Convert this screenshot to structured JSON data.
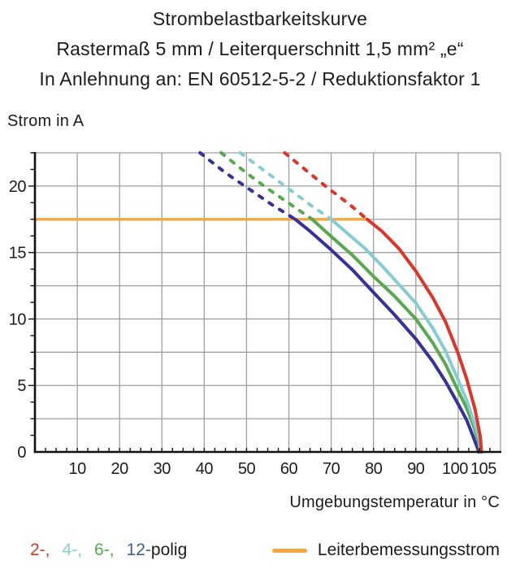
{
  "title": {
    "line1": "Strombelastbarkeitskurve",
    "line2": "Rastermaß 5 mm / Leiterquerschnitt 1,5 mm² „e“",
    "line3": "In Anlehnung an: EN 60512-5-2 / Reduktionsfaktor 1"
  },
  "y_axis_title": "Strom in A",
  "x_axis_title": "Umgebungstemperatur in °C",
  "legend": {
    "pole_items": [
      {
        "label": "2-,",
        "color": "#df3428"
      },
      {
        "label": "4-,",
        "color": "#85ccd3"
      },
      {
        "label": "6-,",
        "color": "#56a94c"
      },
      {
        "label": "12-",
        "color": "#3a61a5"
      }
    ],
    "pole_suffix": "polig",
    "rated_current_label": "Leiterbemessungsstrom",
    "rated_current_color": "#f4a640"
  },
  "chart_data": {
    "type": "line",
    "title": "Strombelastbarkeitskurve",
    "xlabel": "Umgebungstemperatur in °C",
    "ylabel": "Strom in A",
    "xlim": [
      0,
      110
    ],
    "ylim": [
      0,
      22.5
    ],
    "x_grid_step": 10,
    "y_grid_step": 2.5,
    "x_minor_tick_step": 2.5,
    "y_minor_tick_step": 1.25,
    "x_tick_labels": [
      10,
      20,
      30,
      40,
      50,
      60,
      70,
      80,
      90,
      100,
      105
    ],
    "y_tick_labels": [
      0,
      5,
      10,
      15,
      20
    ],
    "grid_on": true,
    "grid_color": "#9f9f9f",
    "axis_color": "#111111",
    "legend_position": "bottom",
    "rated_current_line": {
      "label": "Leiterbemessungsstrom",
      "y": 17.5,
      "x_start": 0,
      "x_end": 78.5,
      "color": "#f4a640"
    },
    "series": [
      {
        "name": "12-polig",
        "color": "#34309c",
        "dashed_points": [
          [
            39,
            22.5
          ],
          [
            45,
            21.0
          ],
          [
            50.5,
            19.8
          ],
          [
            56,
            18.6
          ],
          [
            61.5,
            17.5
          ]
        ],
        "solid_points": [
          [
            61.5,
            17.5
          ],
          [
            65,
            16.6
          ],
          [
            70,
            15.2
          ],
          [
            75,
            13.7
          ],
          [
            80,
            12.0
          ],
          [
            85,
            10.3
          ],
          [
            90,
            8.5
          ],
          [
            94,
            6.8
          ],
          [
            97,
            5.3
          ],
          [
            100,
            3.6
          ],
          [
            102,
            2.4
          ],
          [
            103.5,
            1.2
          ],
          [
            104.9,
            0
          ]
        ]
      },
      {
        "name": "6-polig",
        "color": "#56a94c",
        "dashed_points": [
          [
            44,
            22.5
          ],
          [
            49.5,
            21.1
          ],
          [
            55,
            19.8
          ],
          [
            60.5,
            18.6
          ],
          [
            65.5,
            17.5
          ]
        ],
        "solid_points": [
          [
            65.5,
            17.5
          ],
          [
            70,
            16.2
          ],
          [
            75,
            14.8
          ],
          [
            80,
            13.2
          ],
          [
            85,
            11.7
          ],
          [
            90,
            10.0
          ],
          [
            94,
            8.2
          ],
          [
            97,
            6.6
          ],
          [
            100,
            4.6
          ],
          [
            102,
            3.3
          ],
          [
            103.5,
            2.1
          ],
          [
            104.8,
            0.8
          ],
          [
            105.2,
            0
          ]
        ]
      },
      {
        "name": "4-polig",
        "color": "#85ccd3",
        "dashed_points": [
          [
            48.5,
            22.5
          ],
          [
            54,
            21.2
          ],
          [
            59.5,
            19.9
          ],
          [
            65,
            18.6
          ],
          [
            70,
            17.5
          ]
        ],
        "solid_points": [
          [
            70,
            17.5
          ],
          [
            74,
            16.4
          ],
          [
            78,
            15.3
          ],
          [
            82,
            14.0
          ],
          [
            86,
            12.6
          ],
          [
            90,
            11.2
          ],
          [
            94,
            9.3
          ],
          [
            97,
            7.6
          ],
          [
            100,
            5.4
          ],
          [
            102,
            3.9
          ],
          [
            103.5,
            2.5
          ],
          [
            105,
            0.9
          ],
          [
            105.3,
            0
          ]
        ]
      },
      {
        "name": "2-polig",
        "color": "#df3428",
        "dashed_points": [
          [
            59,
            22.5
          ],
          [
            64,
            21.2
          ],
          [
            69,
            19.9
          ],
          [
            74,
            18.7
          ],
          [
            78.5,
            17.5
          ]
        ],
        "solid_points": [
          [
            78.5,
            17.5
          ],
          [
            82,
            16.6
          ],
          [
            86,
            15.3
          ],
          [
            90,
            13.6
          ],
          [
            94,
            11.6
          ],
          [
            97,
            9.8
          ],
          [
            100,
            7.4
          ],
          [
            102,
            5.5
          ],
          [
            104,
            3.2
          ],
          [
            105.2,
            1.2
          ],
          [
            105.5,
            0
          ]
        ]
      }
    ]
  }
}
